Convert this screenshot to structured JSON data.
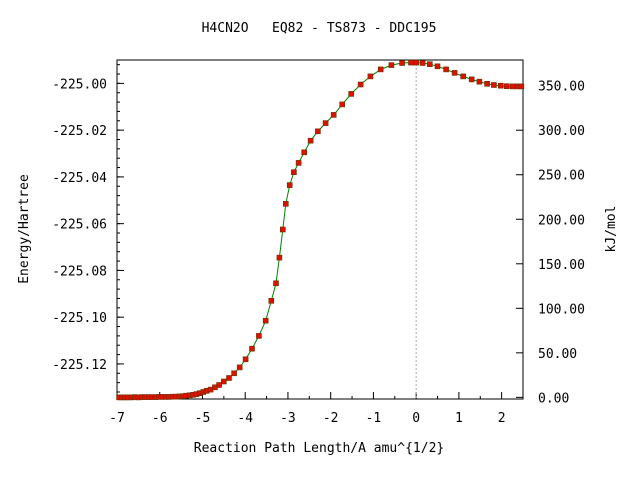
{
  "chart_data": {
    "type": "scatter",
    "title": "H4CN2O   EQ82 - TS873 - DDC195",
    "xlabel": "Reaction Path Length/A amu^{1/2}",
    "ylabel_left": "Energy/Hartree",
    "ylabel_right": "kJ/mol",
    "xlim": [
      -7,
      2.5
    ],
    "ylim": [
      -225.135,
      -224.99
    ],
    "grid": false,
    "ts_marker_x": 0,
    "x_ticks": [
      -7,
      -6,
      -5,
      -4,
      -3,
      -2,
      -1,
      0,
      1,
      2
    ],
    "x_tick_labels": [
      "-7",
      "-6",
      "-5",
      "-4",
      "-3",
      "-2",
      "-1",
      "0",
      "1",
      "2"
    ],
    "y_ticks_left": [
      -225.0,
      -225.02,
      -225.04,
      -225.06,
      -225.08,
      -225.1,
      -225.12
    ],
    "y_tick_labels_left": [
      "-225.00",
      "-225.02",
      "-225.04",
      "-225.06",
      "-225.08",
      "-225.10",
      "-225.12"
    ],
    "y_ticks_right_kj": [
      0,
      50,
      100,
      150,
      200,
      250,
      300,
      350
    ],
    "y_tick_labels_right": [
      "0.00",
      "50.00",
      "100.00",
      "150.00",
      "200.00",
      "250.00",
      "300.00",
      "350.00"
    ],
    "kj_zero_hartree": -225.1343,
    "kj_per_hartree": 2625.5,
    "colors": {
      "line": "#008000",
      "marker": "#dd1100",
      "marker_edge": "#663300",
      "ts_line": "#aaaaaa"
    },
    "series": [
      {
        "x": [
          -6.95,
          -6.88,
          -6.81,
          -6.74,
          -6.66,
          -6.58,
          -6.5,
          -6.42,
          -6.34,
          -6.26,
          -6.18,
          -6.1,
          -6.02,
          -5.94,
          -5.86,
          -5.78,
          -5.7,
          -5.62,
          -5.54,
          -5.46,
          -5.38,
          -5.3,
          -5.22,
          -5.14,
          -5.06,
          -4.98,
          -4.9,
          -4.81,
          -4.71,
          -4.61,
          -4.5,
          -4.38,
          -4.26,
          -4.13,
          -3.99,
          -3.84,
          -3.68,
          -3.52,
          -3.39,
          -3.28,
          -3.2,
          -3.12,
          -3.05,
          -2.96,
          -2.86,
          -2.75,
          -2.62,
          -2.47,
          -2.3,
          -2.12,
          -1.93,
          -1.73,
          -1.52,
          -1.3,
          -1.07,
          -0.83,
          -0.58,
          -0.33,
          -0.12,
          0.0,
          0.15,
          0.32,
          0.5,
          0.7,
          0.9,
          1.1,
          1.3,
          1.48,
          1.66,
          1.82,
          1.98,
          2.12,
          2.26,
          2.38,
          2.46
        ],
        "y": [
          -225.1343,
          -225.1343,
          -225.1343,
          -225.1343,
          -225.1343,
          -225.1342,
          -225.1343,
          -225.1342,
          -225.1342,
          -225.1342,
          -225.1342,
          -225.1342,
          -225.1341,
          -225.1341,
          -225.1341,
          -225.1341,
          -225.134,
          -225.134,
          -225.1339,
          -225.1338,
          -225.1336,
          -225.1334,
          -225.1332,
          -225.1329,
          -225.1325,
          -225.132,
          -225.1315,
          -225.131,
          -225.13,
          -225.129,
          -225.1275,
          -225.126,
          -225.124,
          -225.1215,
          -225.118,
          -225.1135,
          -225.108,
          -225.1015,
          -225.093,
          -225.0855,
          -225.0745,
          -225.0625,
          -225.0515,
          -225.0435,
          -225.038,
          -225.034,
          -225.0295,
          -225.0245,
          -225.0205,
          -225.017,
          -225.0135,
          -225.009,
          -225.0045,
          -225.0005,
          -224.997,
          -224.994,
          -224.9922,
          -224.9913,
          -224.9911,
          -224.9911,
          -224.9913,
          -224.9918,
          -224.9927,
          -224.994,
          -224.9955,
          -224.997,
          -224.9983,
          -224.9993,
          -225.0002,
          -225.0007,
          -225.001,
          -225.0012,
          -225.0013,
          -225.0013,
          -225.0013
        ]
      }
    ]
  }
}
